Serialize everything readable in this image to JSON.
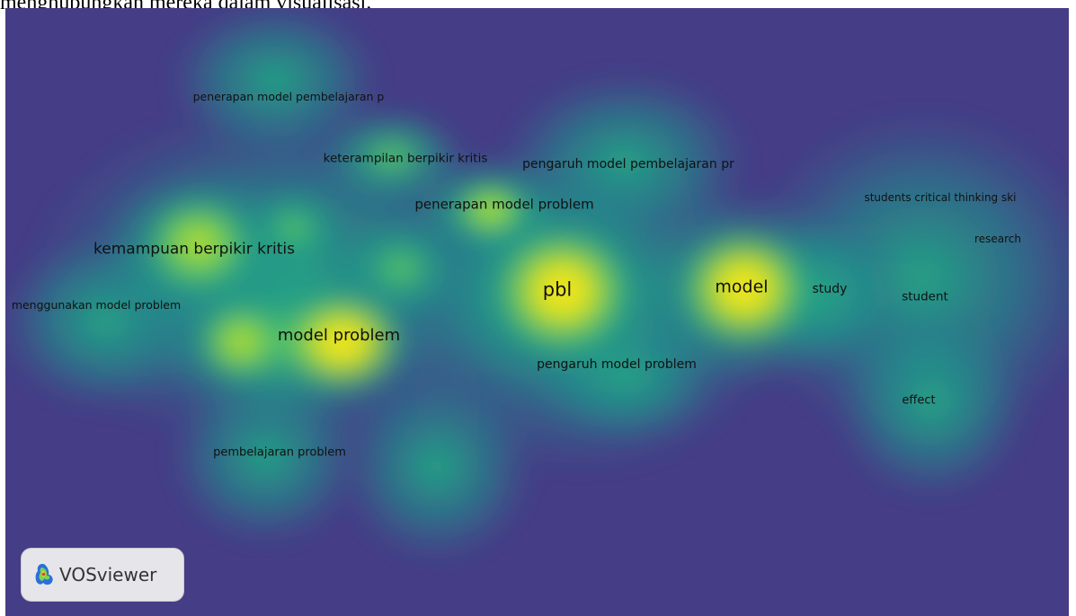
{
  "caption": "menghubungkan mereka dalam visualisasi.",
  "map": {
    "background": "#453d86",
    "terms": [
      {
        "id": "penerapan-model-pembelajaran-p",
        "label": "penerapan model pembelajaran p"
      },
      {
        "id": "keterampilan-berpikir-kritis",
        "label": "keterampilan berpikir kritis"
      },
      {
        "id": "pengaruh-model-pembelajaran-pr",
        "label": "pengaruh model pembelajaran pr"
      },
      {
        "id": "penerapan-model-problem",
        "label": "penerapan model problem"
      },
      {
        "id": "kemampuan-berpikir-kritis",
        "label": "kemampuan berpikir kritis"
      },
      {
        "id": "menggunakan-model-problem",
        "label": "menggunakan model problem"
      },
      {
        "id": "model-problem",
        "label": "model problem"
      },
      {
        "id": "pbl",
        "label": "pbl"
      },
      {
        "id": "model",
        "label": "model"
      },
      {
        "id": "study",
        "label": "study"
      },
      {
        "id": "student",
        "label": "student"
      },
      {
        "id": "students-critical-thinking-ski",
        "label": "students critical thinking ski"
      },
      {
        "id": "research",
        "label": "research"
      },
      {
        "id": "pengaruh-model-problem",
        "label": "pengaruh model problem"
      },
      {
        "id": "effect",
        "label": "effect"
      },
      {
        "id": "pembelajaran-problem",
        "label": "pembelajaran problem"
      }
    ]
  },
  "logo": {
    "icon": "vosviewer-logo-icon",
    "text": "VOSviewer"
  }
}
